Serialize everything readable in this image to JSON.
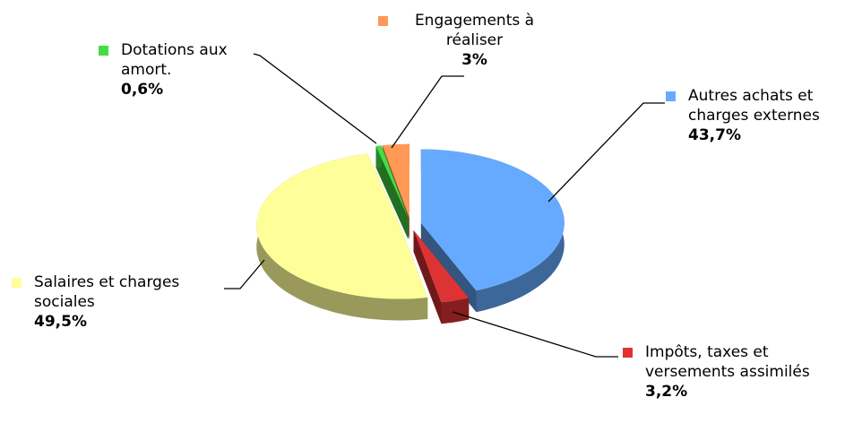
{
  "chart_data": {
    "type": "pie3d",
    "categories": [
      "Autres achats et charges externes",
      "Impôts, taxes et versements assimilés",
      "Salaires et charges sociales",
      "Dotations aux amort.",
      "Engagements à réaliser"
    ],
    "values": [
      43.7,
      3.2,
      49.5,
      0.6,
      3
    ],
    "value_labels": [
      "43,7%",
      "3,2%",
      "49,5%",
      "0,6%",
      "3%"
    ],
    "colors": [
      "#66aaff",
      "#dd3333",
      "#ffff99",
      "#44dd44",
      "#ff9955"
    ]
  }
}
